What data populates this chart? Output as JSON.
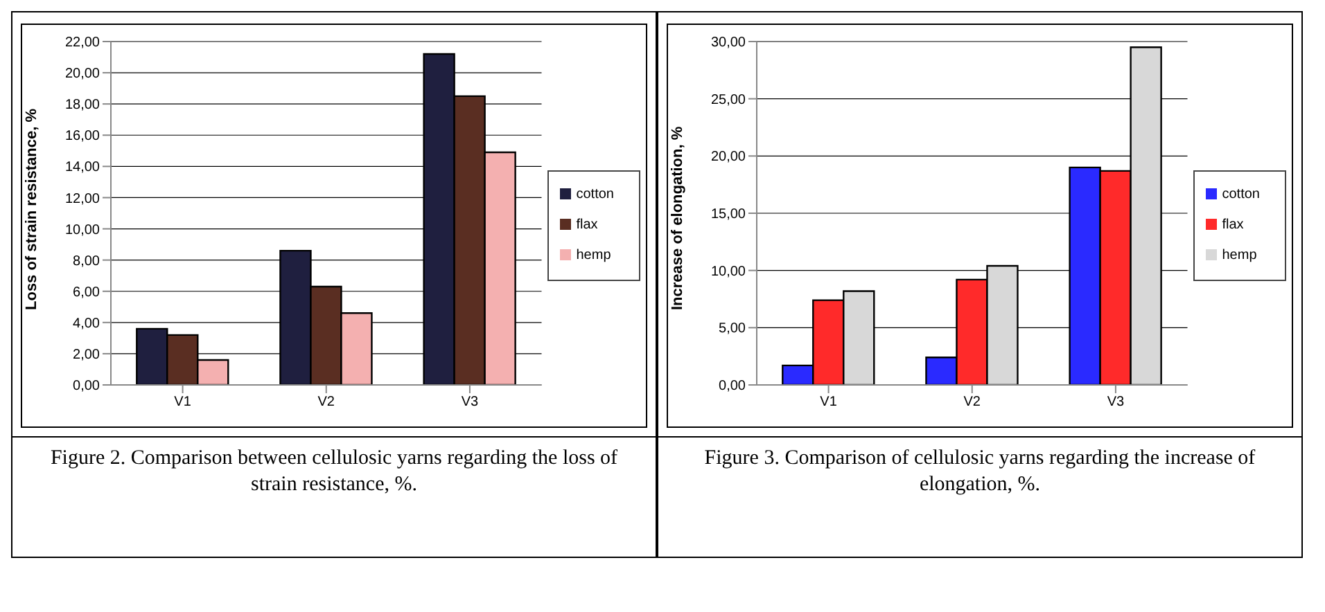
{
  "chart_data": [
    {
      "type": "bar",
      "ylabel": "Loss of strain resistance, %",
      "categories": [
        "V1",
        "V2",
        "V3"
      ],
      "series": [
        {
          "name": "cotton",
          "color": "#1f1f3f",
          "values": [
            3.6,
            8.6,
            21.2
          ]
        },
        {
          "name": "flax",
          "color": "#5a2e22",
          "values": [
            3.2,
            6.3,
            18.5
          ]
        },
        {
          "name": "hemp",
          "color": "#f4b0b0",
          "values": [
            1.6,
            4.6,
            14.9
          ]
        }
      ],
      "ylim": [
        0,
        22
      ],
      "yticks": [
        {
          "value": 0,
          "label": "0,00"
        },
        {
          "value": 2,
          "label": "2,00"
        },
        {
          "value": 4,
          "label": "4,00"
        },
        {
          "value": 6,
          "label": "6,00"
        },
        {
          "value": 8,
          "label": "8,00"
        },
        {
          "value": 10,
          "label": "10,00"
        },
        {
          "value": 12,
          "label": "12,00"
        },
        {
          "value": 14,
          "label": "14,00"
        },
        {
          "value": 16,
          "label": "16,00"
        },
        {
          "value": 18,
          "label": "18,00"
        },
        {
          "value": 20,
          "label": "20,00"
        },
        {
          "value": 22,
          "label": "22,00"
        }
      ],
      "grid": "y",
      "legend": "right",
      "annotations": [
        "Figure 2. Comparison between cellulosic yarns regarding the loss of strain resistance, %."
      ]
    },
    {
      "type": "bar",
      "ylabel": "Increase of elongation, %",
      "categories": [
        "V1",
        "V2",
        "V3"
      ],
      "series": [
        {
          "name": "cotton",
          "color": "#2a2aff",
          "values": [
            1.7,
            2.4,
            19.0
          ]
        },
        {
          "name": "flax",
          "color": "#ff2a2a",
          "values": [
            7.4,
            9.2,
            18.7
          ]
        },
        {
          "name": "hemp",
          "color": "#d8d8d8",
          "values": [
            8.2,
            10.4,
            29.5
          ]
        }
      ],
      "ylim": [
        0,
        30
      ],
      "yticks": [
        {
          "value": 0,
          "label": "0,00"
        },
        {
          "value": 5,
          "label": "5,00"
        },
        {
          "value": 10,
          "label": "10,00"
        },
        {
          "value": 15,
          "label": "15,00"
        },
        {
          "value": 20,
          "label": "20,00"
        },
        {
          "value": 25,
          "label": "25,00"
        },
        {
          "value": 30,
          "label": "30,00"
        }
      ],
      "grid": "y",
      "legend": "right",
      "annotations": [
        "Figure 3. Comparison of cellulosic yarns regarding the increase of elongation, %."
      ]
    }
  ]
}
